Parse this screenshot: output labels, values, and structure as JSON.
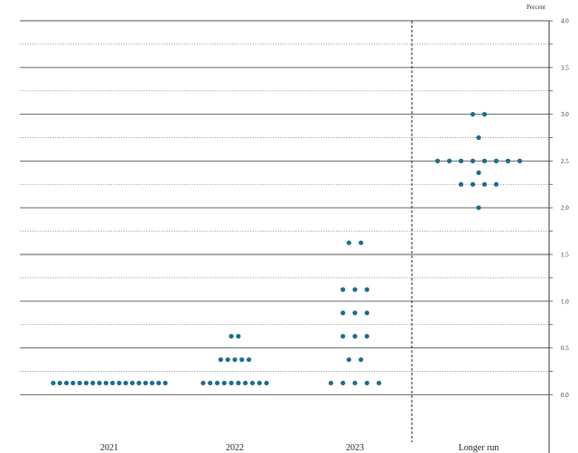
{
  "chart_data": {
    "type": "scatter",
    "title": "",
    "unit_label": "Percent",
    "xlabel": "",
    "ylabel": "",
    "ylim": [
      -0.5,
      4.0
    ],
    "y_ticks": [
      {
        "value": 4.0,
        "label": "4.0"
      },
      {
        "value": 3.5,
        "label": "3.5"
      },
      {
        "value": 3.0,
        "label": "3.0"
      },
      {
        "value": 2.5,
        "label": "2.5"
      },
      {
        "value": 2.0,
        "label": "2.0"
      },
      {
        "value": 1.5,
        "label": "1.5"
      },
      {
        "value": 1.0,
        "label": "1.0"
      },
      {
        "value": 0.5,
        "label": "0.5"
      },
      {
        "value": 0.0,
        "label": "0.0"
      }
    ],
    "categories": [
      "2021",
      "2022",
      "2023",
      "Longer run"
    ],
    "grid": "solid at whole and half percent, dotted at quarter-percent",
    "dot_color": "#1a6e8e",
    "series": [
      {
        "category": "2021",
        "points": [
          {
            "y": 0.125,
            "count": 18
          }
        ]
      },
      {
        "category": "2022",
        "points": [
          {
            "y": 0.125,
            "count": 10
          },
          {
            "y": 0.375,
            "count": 5
          },
          {
            "y": 0.625,
            "count": 2
          }
        ]
      },
      {
        "category": "2023",
        "points": [
          {
            "y": 0.125,
            "count": 5
          },
          {
            "y": 0.375,
            "count": 2
          },
          {
            "y": 0.625,
            "count": 3
          },
          {
            "y": 0.875,
            "count": 3
          },
          {
            "y": 1.125,
            "count": 3
          },
          {
            "y": 1.625,
            "count": 2
          }
        ]
      },
      {
        "category": "Longer run",
        "points": [
          {
            "y": 2.0,
            "count": 1
          },
          {
            "y": 2.25,
            "count": 4
          },
          {
            "y": 2.375,
            "count": 1
          },
          {
            "y": 2.5,
            "count": 8
          },
          {
            "y": 2.75,
            "count": 1
          },
          {
            "y": 3.0,
            "count": 2
          }
        ]
      }
    ]
  }
}
